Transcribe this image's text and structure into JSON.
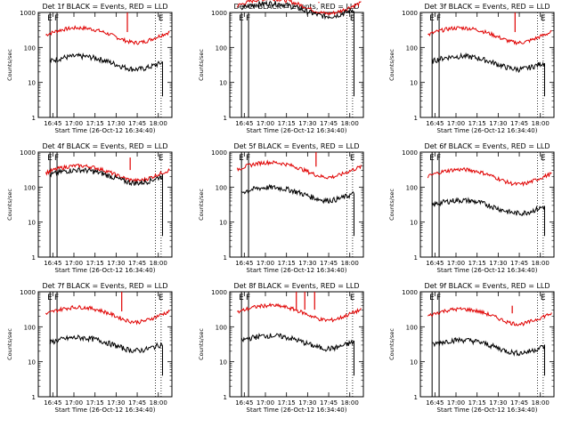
{
  "chart_data": {
    "type": "line",
    "y_scale": "log",
    "ylim": [
      1,
      1000
    ],
    "y_ticks": [
      "1",
      "10",
      "100",
      "1000"
    ],
    "ylabel": "Counts/sec",
    "xlabel": "Start Time (26-Oct-12 16:34:40)",
    "x_ticks": [
      "16:45",
      "17:00",
      "17:15",
      "17:30",
      "17:45",
      "18:00"
    ],
    "series_colors": {
      "events": "#000000",
      "lld": "#e00000"
    },
    "markers": {
      "solid": [
        "16:43",
        "16:48"
      ],
      "dashed": [
        "17:58",
        "18:02"
      ]
    },
    "marker_labels": [
      "E",
      "F",
      "E"
    ],
    "panels": [
      {
        "title": "Det 1f BLACK = Events, RED = LLD",
        "lld_level": 250,
        "events_level": 40,
        "spikes": [
          {
            "time": "17:38",
            "value": 1000
          }
        ]
      },
      {
        "title": "Det 2f BLACK = Events, RED = LLD",
        "lld_level": 1700,
        "events_level": 1300,
        "spikes": [
          {
            "time": "17:38",
            "value": 2000
          }
        ]
      },
      {
        "title": "Det 3f BLACK = Events, RED = LLD",
        "lld_level": 250,
        "events_level": 40,
        "spikes": [
          {
            "time": "17:42",
            "value": 1000
          }
        ]
      },
      {
        "title": "Det 4f BLACK = Events, RED = LLD",
        "lld_level": 280,
        "events_level": 220,
        "spikes": [
          {
            "time": "17:40",
            "value": 700
          }
        ]
      },
      {
        "title": "Det 5f BLACK = Events, RED = LLD",
        "lld_level": 350,
        "events_level": 70,
        "spikes": [
          {
            "time": "17:36",
            "value": 1000
          }
        ]
      },
      {
        "title": "Det 6f BLACK = Events, RED = LLD",
        "lld_level": 220,
        "events_level": 30,
        "spikes": []
      },
      {
        "title": "Det 7f BLACK = Events, RED = LLD",
        "lld_level": 250,
        "events_level": 35,
        "spikes": [
          {
            "time": "17:34",
            "value": 1000
          }
        ]
      },
      {
        "title": "Det 8f BLACK = Events, RED = LLD",
        "lld_level": 280,
        "events_level": 40,
        "spikes": [
          {
            "time": "17:22",
            "value": 1000
          },
          {
            "time": "17:28",
            "value": 1000
          },
          {
            "time": "17:35",
            "value": 1000
          }
        ]
      },
      {
        "title": "Det 9f BLACK = Events, RED = LLD",
        "lld_level": 220,
        "events_level": 30,
        "spikes": [
          {
            "time": "17:40",
            "value": 400
          }
        ]
      }
    ]
  }
}
